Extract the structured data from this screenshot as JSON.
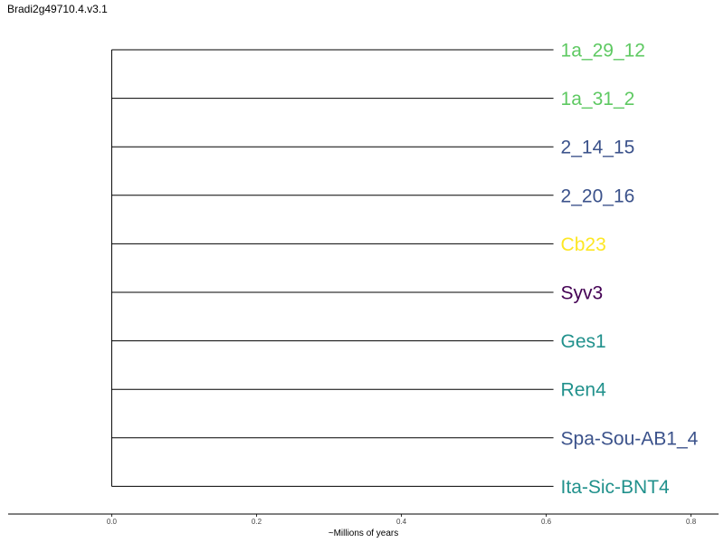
{
  "title": "Bradi2g49710.4.v3.1",
  "chart_data": {
    "type": "dendrogram",
    "title": "Bradi2g49710.4.v3.1",
    "xlabel": "~Millions of years",
    "ylabel": "",
    "xlim": [
      -0.143,
      0.838
    ],
    "x_ticks": [
      0.0,
      0.2,
      0.4,
      0.6,
      0.8
    ],
    "x_tick_labels": [
      "0.0",
      "0.2",
      "0.4",
      "0.6",
      "0.8"
    ],
    "root_x": 0.0,
    "grid": false,
    "tips": [
      {
        "label": "1a_29_12",
        "branch_end": 0.61,
        "color": "#5ec962"
      },
      {
        "label": "1a_31_2",
        "branch_end": 0.61,
        "color": "#5ec962"
      },
      {
        "label": "2_14_15",
        "branch_end": 0.61,
        "color": "#3b528b"
      },
      {
        "label": "2_20_16",
        "branch_end": 0.61,
        "color": "#3b528b"
      },
      {
        "label": "Cb23",
        "branch_end": 0.61,
        "color": "#fde725"
      },
      {
        "label": "Syv3",
        "branch_end": 0.61,
        "color": "#440154"
      },
      {
        "label": "Ges1",
        "branch_end": 0.61,
        "color": "#21918c"
      },
      {
        "label": "Ren4",
        "branch_end": 0.61,
        "color": "#21918c"
      },
      {
        "label": "Spa-Sou-AB1_4",
        "branch_end": 0.61,
        "color": "#3b528b"
      },
      {
        "label": "Ita-Sic-BNT4",
        "branch_end": 0.61,
        "color": "#21918c"
      }
    ]
  }
}
